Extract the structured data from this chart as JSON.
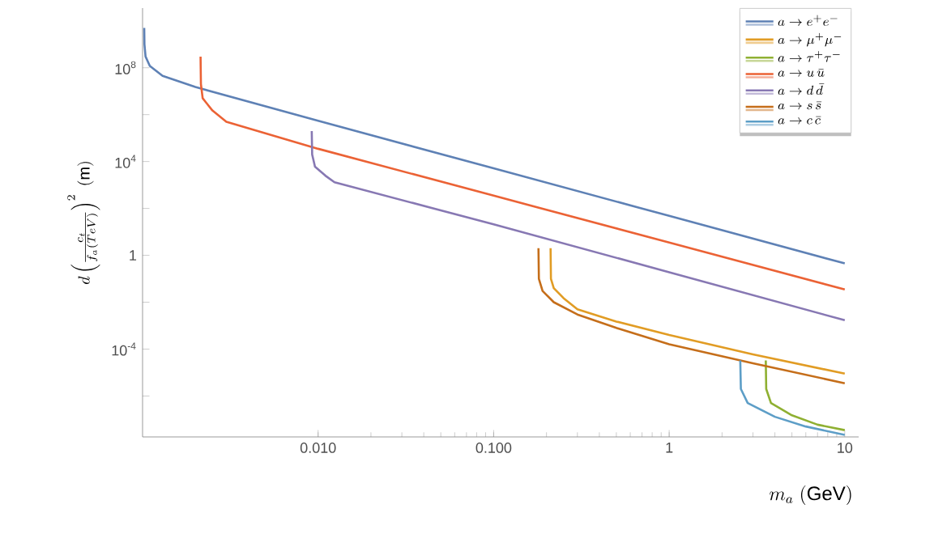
{
  "chart_data": {
    "type": "line",
    "xlabel": "m_a\\ (\\mathrm{GeV})",
    "ylabel": "d\\left(\\frac{c_t}{f_a(TeV)}\\right)^{2}\\ (\\mathrm{m})",
    "log": "xy",
    "legend": "top right",
    "xlim": [
      0.001,
      12
    ],
    "ylim": [
      1.8e-08,
      35000000000.0
    ],
    "xticks": [
      {
        "value": 0.01,
        "label": "0.010"
      },
      {
        "value": 0.1,
        "label": "0.100"
      },
      1,
      10
    ],
    "yticks": [
      {
        "value": 1e-06,
        "label": null
      },
      {
        "value": 0.0001,
        "label": "10$^{-4}$"
      },
      {
        "value": 0.01,
        "label": null
      },
      1,
      {
        "value": 100,
        "label": null
      },
      {
        "value": 10000,
        "label": "10$^{4}$"
      },
      {
        "value": 1000000.0,
        "label": null
      },
      {
        "value": 100000000.0,
        "label": "10$^{8}$"
      }
    ],
    "series": [
      {
        "name": "a\\to e^+e^-",
        "color": "#5e81b5",
        "x": [
          0.001022,
          0.001025,
          0.00104,
          0.0011,
          0.0013,
          0.002,
          0.01,
          0.1,
          1,
          10
        ],
        "values": [
          5000000000.0,
          1000000000.0,
          300000000.0,
          120000000.0,
          45000000.0,
          15000000.0,
          550000.0,
          5100,
          48,
          0.45
        ]
      },
      {
        "name": "a\\to \\mu^+\\mu^-",
        "color": "#e19c24",
        "x": [
          0.211,
          0.212,
          0.22,
          0.25,
          0.3,
          0.5,
          1,
          3,
          10
        ],
        "values": [
          2,
          0.1,
          0.04,
          0.015,
          0.005,
          0.0015,
          0.0004,
          6e-05,
          9e-06
        ]
      },
      {
        "name": "a\\to \\tau^+\\tau^-",
        "color": "#8fb032",
        "x": [
          3.55,
          3.57,
          3.8,
          5,
          7,
          10
        ],
        "values": [
          3.3e-05,
          2e-06,
          5e-07,
          1.5e-07,
          6e-08,
          3.5e-08
        ]
      },
      {
        "name": "a\\to u\\,\\bar{u}",
        "color": "#eb6235",
        "x": [
          0.00214,
          0.00215,
          0.0022,
          0.0025,
          0.003,
          0.01,
          0.1,
          1,
          10
        ],
        "values": [
          300000000.0,
          20000000.0,
          5000000.0,
          1500000.0,
          500000.0,
          35000,
          350,
          3.5,
          0.035
        ]
      },
      {
        "name": "a\\to d\\,\\bar{d}",
        "color": "#8778b3",
        "x": [
          0.0092,
          0.00925,
          0.0096,
          0.011,
          0.0124,
          0.1,
          1,
          10
        ],
        "values": [
          200000.0,
          20000.0,
          6000,
          2500,
          1300,
          21,
          0.19,
          0.0017
        ]
      },
      {
        "name": "a\\to s\\,\\bar{s}",
        "color": "#c56e1a",
        "x": [
          0.18,
          0.181,
          0.19,
          0.22,
          0.3,
          0.5,
          1,
          3,
          10
        ],
        "values": [
          2,
          0.1,
          0.03,
          0.01,
          0.003,
          0.0008,
          0.00016,
          2.5e-05,
          3.5e-06
        ]
      },
      {
        "name": "a\\to c\\,\\bar{c}",
        "color": "#5d9ec7",
        "x": [
          2.54,
          2.56,
          2.8,
          4,
          6,
          10
        ],
        "values": [
          3.3e-05,
          2e-06,
          5e-07,
          1.3e-07,
          5e-08,
          2.2e-08
        ]
      }
    ]
  }
}
